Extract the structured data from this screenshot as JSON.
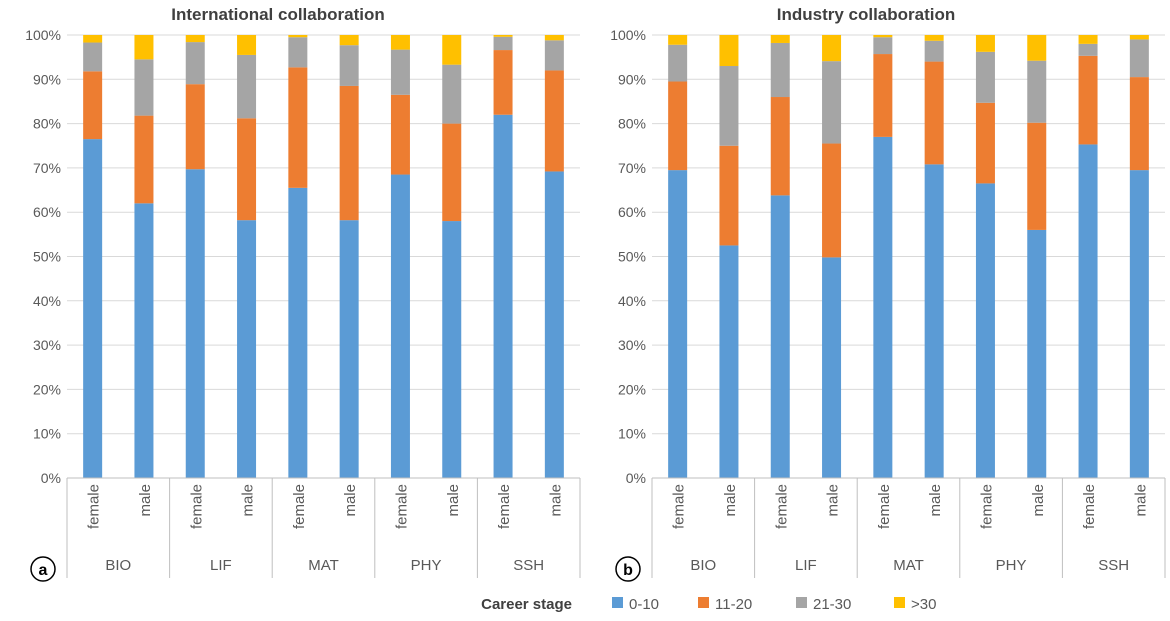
{
  "chart_data": [
    {
      "type": "bar",
      "stacked": true,
      "panel_label": "a",
      "title": "International collaboration",
      "xlabel": "",
      "ylabel": "",
      "ylim": [
        0,
        100
      ],
      "yticks": [
        "0%",
        "10%",
        "20%",
        "30%",
        "40%",
        "50%",
        "60%",
        "70%",
        "80%",
        "90%",
        "100%"
      ],
      "groups": [
        "BIO",
        "LIF",
        "MAT",
        "PHY",
        "SSH"
      ],
      "categories": [
        "female",
        "male",
        "female",
        "male",
        "female",
        "male",
        "female",
        "male",
        "female",
        "male"
      ],
      "series": [
        {
          "name": "0-10",
          "values": [
            76.5,
            62.0,
            69.7,
            58.2,
            65.5,
            58.2,
            68.5,
            58.0,
            82.0,
            69.2
          ]
        },
        {
          "name": "11-20",
          "values": [
            15.3,
            19.8,
            19.2,
            23.0,
            27.2,
            30.3,
            18.0,
            22.0,
            14.6,
            22.8
          ]
        },
        {
          "name": "21-30",
          "values": [
            6.5,
            12.7,
            9.5,
            14.3,
            6.8,
            9.2,
            10.2,
            13.3,
            3.0,
            6.8
          ]
        },
        {
          "name": ">30",
          "values": [
            1.7,
            5.5,
            1.6,
            4.5,
            0.5,
            2.3,
            3.3,
            6.7,
            0.4,
            1.2
          ]
        }
      ]
    },
    {
      "type": "bar",
      "stacked": true,
      "panel_label": "b",
      "title": "Industry collaboration",
      "xlabel": "",
      "ylabel": "",
      "ylim": [
        0,
        100
      ],
      "yticks": [
        "0%",
        "10%",
        "20%",
        "30%",
        "40%",
        "50%",
        "60%",
        "70%",
        "80%",
        "90%",
        "100%"
      ],
      "groups": [
        "BIO",
        "LIF",
        "MAT",
        "PHY",
        "SSH"
      ],
      "categories": [
        "female",
        "male",
        "female",
        "male",
        "female",
        "male",
        "female",
        "male",
        "female",
        "male"
      ],
      "series": [
        {
          "name": "0-10",
          "values": [
            69.5,
            52.5,
            63.8,
            49.8,
            77.0,
            70.8,
            66.5,
            56.0,
            75.3,
            69.5
          ]
        },
        {
          "name": "11-20",
          "values": [
            20.0,
            22.5,
            22.2,
            25.7,
            18.7,
            23.2,
            18.2,
            24.2,
            20.0,
            21.0
          ]
        },
        {
          "name": "21-30",
          "values": [
            8.3,
            18.0,
            12.2,
            18.6,
            3.8,
            4.7,
            11.5,
            14.0,
            2.7,
            8.5
          ]
        },
        {
          "name": ">30",
          "values": [
            2.2,
            7.0,
            1.8,
            5.9,
            0.5,
            1.3,
            3.8,
            5.8,
            2.0,
            1.0
          ]
        }
      ]
    }
  ],
  "legend": {
    "title": "Career stage",
    "items": [
      {
        "label": "0-10",
        "color": "#5B9BD5"
      },
      {
        "label": "11-20",
        "color": "#ED7D31"
      },
      {
        "label": "21-30",
        "color": "#A5A5A5"
      },
      {
        "label": ">30",
        "color": "#FFC000"
      }
    ]
  },
  "colors": {
    "grid": "#D9D9D9",
    "axis": "#BFBFBF",
    "text": "#595959",
    "title": "#404040"
  }
}
